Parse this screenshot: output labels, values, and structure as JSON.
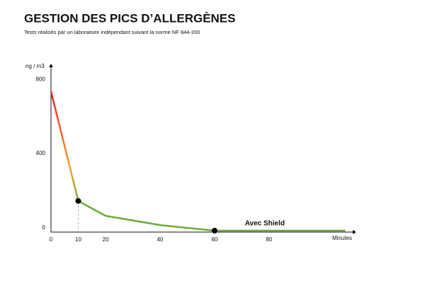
{
  "chart_data": {
    "type": "line",
    "title": "GESTION DES PICS D’ALLERGÈNES",
    "subtitle": "Tests réalisés par un laboratoire indépendant suivant la norme NF 844-200",
    "y_label": "ng / m3",
    "x_label": "Minutes",
    "x": [
      0,
      10,
      20,
      40,
      60,
      108
    ],
    "series": [
      {
        "name": "Avec Shield",
        "color": "#7bbf8c",
        "gradient_colors": [
          "#e2232a",
          "#f2a22f",
          "#6aab3a"
        ],
        "values": [
          750,
          160,
          80,
          30,
          0,
          0
        ]
      }
    ],
    "markers": {
      "x": [
        10,
        60
      ],
      "values": [
        160,
        0
      ]
    },
    "xlim": [
      0,
      112
    ],
    "ylim": [
      0,
      900
    ],
    "xticks": [
      0,
      10,
      20,
      40,
      60,
      80
    ],
    "yticks": [
      0,
      400,
      800
    ]
  }
}
